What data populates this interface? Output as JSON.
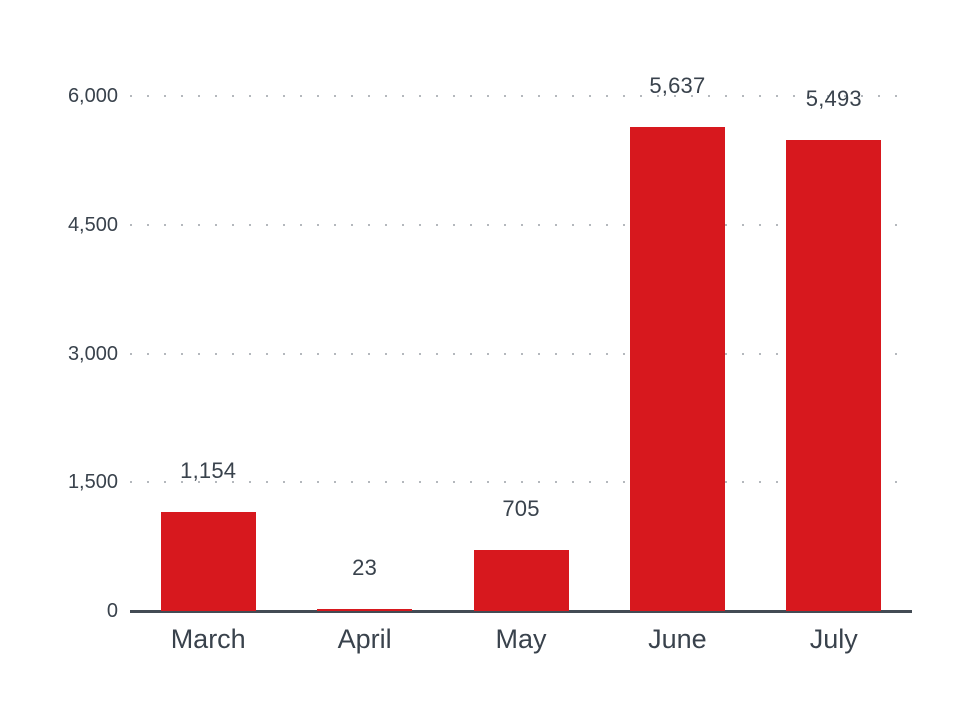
{
  "chart_data": {
    "type": "bar",
    "title": "",
    "categories": [
      "March",
      "April",
      "May",
      "June",
      "July"
    ],
    "values": [
      1154,
      23,
      705,
      5637,
      5493
    ],
    "value_labels": [
      "1,154",
      "23",
      "705",
      "5,637",
      "5,493"
    ],
    "series_name": "",
    "y_ticks": [
      {
        "value": 0,
        "label": "0"
      },
      {
        "value": 1500,
        "label": "1,500"
      },
      {
        "value": 3000,
        "label": "3,000"
      },
      {
        "value": 4500,
        "label": "4,500"
      },
      {
        "value": 6000,
        "label": "6,000"
      }
    ],
    "ylim": [
      0,
      6000
    ],
    "xlabel": "",
    "ylabel": "",
    "grid": "horizontal-dotted",
    "legend": "none",
    "colors": {
      "bar": "#d7181e",
      "text": "#39424c",
      "axis": "#434b54",
      "grid_dots": "#b4b8bd",
      "background": "#ffffff"
    }
  }
}
